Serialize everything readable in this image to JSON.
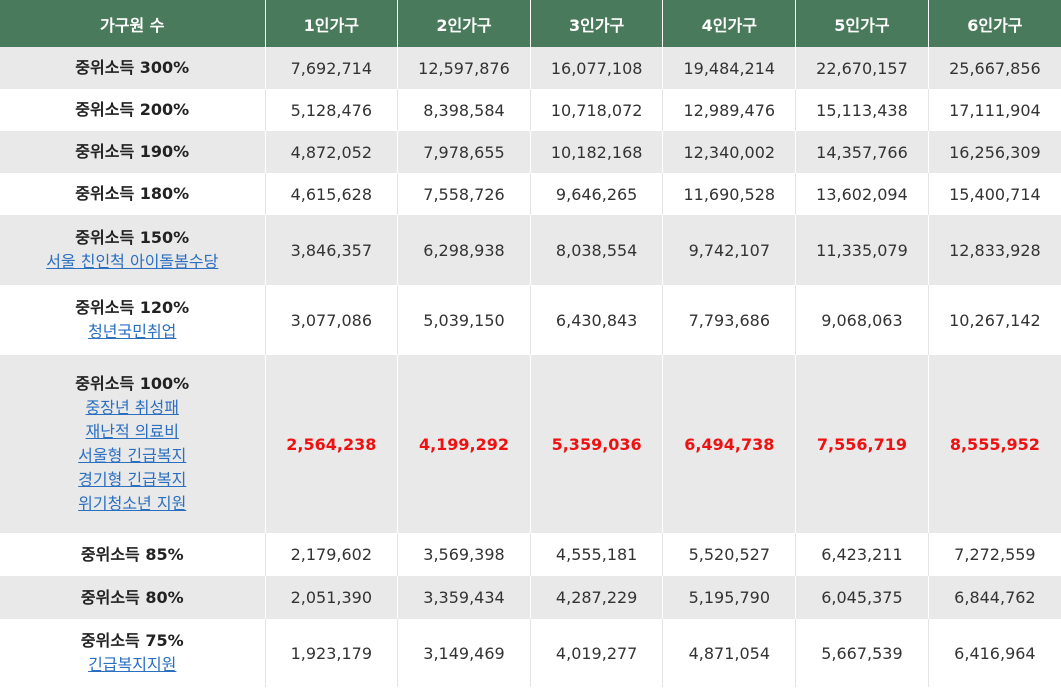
{
  "header": [
    "가구원 수",
    "1인가구",
    "2인가구",
    "3인가구",
    "4인가구",
    "5인가구",
    "6인가구"
  ],
  "rows": [
    {
      "label": "중위소득 300%",
      "links": [],
      "values": [
        "7,692,714",
        "12,597,876",
        "16,077,108",
        "19,484,214",
        "22,670,157",
        "25,667,856"
      ],
      "highlight": false
    },
    {
      "label": "중위소득 200%",
      "links": [],
      "values": [
        "5,128,476",
        "8,398,584",
        "10,718,072",
        "12,989,476",
        "15,113,438",
        "17,111,904"
      ],
      "highlight": false
    },
    {
      "label": "중위소득 190%",
      "links": [],
      "values": [
        "4,872,052",
        "7,978,655",
        "10,182,168",
        "12,340,002",
        "14,357,766",
        "16,256,309"
      ],
      "highlight": false
    },
    {
      "label": "중위소득 180%",
      "links": [],
      "values": [
        "4,615,628",
        "7,558,726",
        "9,646,265",
        "11,690,528",
        "13,602,094",
        "15,400,714"
      ],
      "highlight": false
    },
    {
      "label": "중위소득 150%",
      "links": [
        "서울 친인척 아이돌봄수당"
      ],
      "values": [
        "3,846,357",
        "6,298,938",
        "8,038,554",
        "9,742,107",
        "11,335,079",
        "12,833,928"
      ],
      "highlight": false
    },
    {
      "label": "중위소득 120%",
      "links": [
        "청년국민취업"
      ],
      "values": [
        "3,077,086",
        "5,039,150",
        "6,430,843",
        "7,793,686",
        "9,068,063",
        "10,267,142"
      ],
      "highlight": false
    },
    {
      "label": "중위소득 100%",
      "links": [
        "중장년 취성패",
        "재난적 의료비",
        "서울형 긴급복지",
        "경기형 긴급복지",
        "위기청소년 지원"
      ],
      "values": [
        "2,564,238",
        "4,199,292",
        "5,359,036",
        "6,494,738",
        "7,556,719",
        "8,555,952"
      ],
      "highlight": true
    },
    {
      "label": "중위소득 85%",
      "links": [],
      "values": [
        "2,179,602",
        "3,569,398",
        "4,555,181",
        "5,520,527",
        "6,423,211",
        "7,272,559"
      ],
      "highlight": false
    },
    {
      "label": "중위소득 80%",
      "links": [],
      "values": [
        "2,051,390",
        "3,359,434",
        "4,287,229",
        "5,195,790",
        "6,045,375",
        "6,844,762"
      ],
      "highlight": false
    },
    {
      "label": "중위소득 75%",
      "links": [
        "긴급복지지원"
      ],
      "values": [
        "1,923,179",
        "3,149,469",
        "4,019,277",
        "4,871,054",
        "5,667,539",
        "6,416,964"
      ],
      "highlight": false
    }
  ]
}
